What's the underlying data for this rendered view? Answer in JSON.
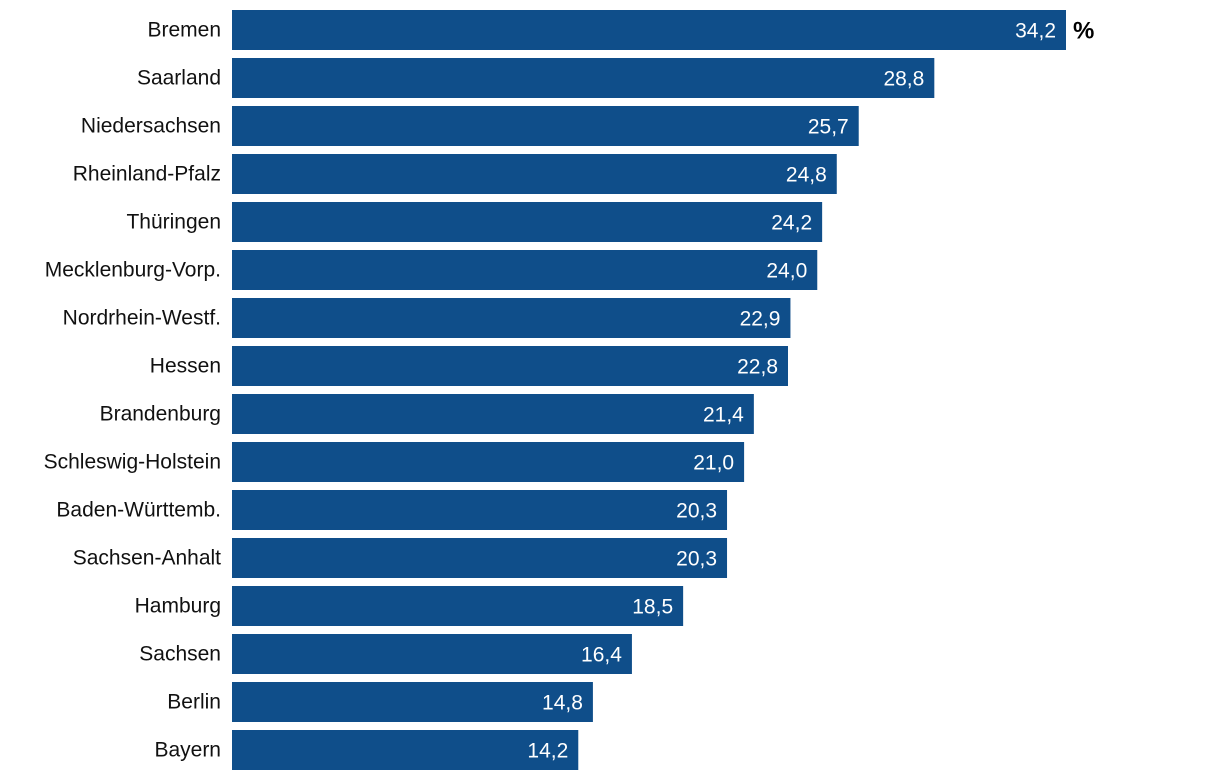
{
  "chart_data": {
    "type": "bar",
    "orientation": "horizontal",
    "unit": "%",
    "categories": [
      "Bremen",
      "Saarland",
      "Niedersachsen",
      "Rheinland-Pfalz",
      "Thüringen",
      "Mecklenburg-Vorp.",
      "Nordrhein-Westf.",
      "Hessen",
      "Brandenburg",
      "Schleswig-Holstein",
      "Baden-Württemb.",
      "Sachsen-Anhalt",
      "Hamburg",
      "Sachsen",
      "Berlin",
      "Bayern"
    ],
    "values": [
      34.2,
      28.8,
      25.7,
      24.8,
      24.2,
      24.0,
      22.9,
      22.8,
      21.4,
      21.0,
      20.3,
      20.3,
      18.5,
      16.4,
      14.8,
      14.2
    ],
    "value_labels": [
      "34,2",
      "28,8",
      "25,7",
      "24,8",
      "24,2",
      "24,0",
      "22,9",
      "22,8",
      "21,4",
      "21,0",
      "20,3",
      "20,3",
      "18,5",
      "16,4",
      "14,8",
      "14,2"
    ],
    "title": "",
    "xlabel": "",
    "ylabel": "",
    "xlim": [
      0,
      34.2
    ],
    "grid": false,
    "legend": "none",
    "bar_color": "#0f4e8a"
  }
}
